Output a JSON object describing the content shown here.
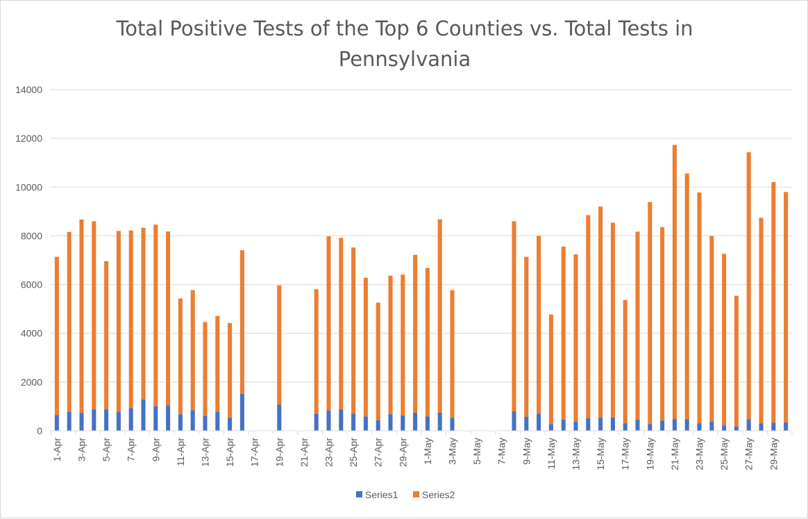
{
  "chart_data": {
    "type": "bar",
    "stacked": true,
    "title_lines": [
      "Total Positive Tests of the Top 6 Counties vs. Total Tests in",
      "Pennsylvania"
    ],
    "xlabel": "",
    "ylabel": "",
    "ylim": [
      0,
      14000
    ],
    "yticks": [
      0,
      2000,
      4000,
      6000,
      8000,
      10000,
      12000,
      14000
    ],
    "grid": true,
    "legend_position": "bottom",
    "categories": [
      "1-Apr",
      "2-Apr",
      "3-Apr",
      "4-Apr",
      "5-Apr",
      "6-Apr",
      "7-Apr",
      "8-Apr",
      "9-Apr",
      "10-Apr",
      "11-Apr",
      "12-Apr",
      "13-Apr",
      "14-Apr",
      "15-Apr",
      "16-Apr",
      "17-Apr",
      "18-Apr",
      "19-Apr",
      "20-Apr",
      "21-Apr",
      "22-Apr",
      "23-Apr",
      "24-Apr",
      "25-Apr",
      "26-Apr",
      "27-Apr",
      "28-Apr",
      "29-Apr",
      "30-Apr",
      "1-May",
      "2-May",
      "3-May",
      "4-May",
      "5-May",
      "6-May",
      "7-May",
      "8-May",
      "9-May",
      "10-May",
      "11-May",
      "12-May",
      "13-May",
      "14-May",
      "15-May",
      "16-May",
      "17-May",
      "18-May",
      "19-May",
      "20-May",
      "21-May",
      "22-May",
      "23-May",
      "24-May",
      "25-May",
      "26-May",
      "27-May",
      "28-May",
      "29-May",
      "30-May"
    ],
    "xtick_labels": [
      "1-Apr",
      "",
      "3-Apr",
      "",
      "5-Apr",
      "",
      "7-Apr",
      "",
      "9-Apr",
      "",
      "11-Apr",
      "",
      "13-Apr",
      "",
      "15-Apr",
      "",
      "17-Apr",
      "",
      "19-Apr",
      "",
      "21-Apr",
      "",
      "23-Apr",
      "",
      "25-Apr",
      "",
      "27-Apr",
      "",
      "29-Apr",
      "",
      "1-May",
      "",
      "3-May",
      "",
      "5-May",
      "",
      "7-May",
      "",
      "9-May",
      "",
      "11-May",
      "",
      "13-May",
      "",
      "15-May",
      "",
      "17-May",
      "",
      "19-May",
      "",
      "21-May",
      "",
      "23-May",
      "",
      "25-May",
      "",
      "27-May",
      "",
      "29-May",
      ""
    ],
    "series": [
      {
        "name": "Series1",
        "color": "#4472c4",
        "values": [
          650,
          770,
          730,
          870,
          880,
          790,
          930,
          1290,
          1010,
          1040,
          680,
          850,
          620,
          770,
          540,
          1520,
          null,
          null,
          1080,
          null,
          null,
          700,
          830,
          880,
          710,
          590,
          430,
          680,
          630,
          740,
          590,
          740,
          530,
          null,
          null,
          null,
          null,
          800,
          570,
          700,
          280,
          460,
          380,
          520,
          540,
          550,
          310,
          460,
          280,
          420,
          470,
          480,
          310,
          370,
          210,
          170,
          480,
          300,
          330,
          340
        ]
      },
      {
        "name": "Series2",
        "color": "#ed7d31",
        "values": [
          6490,
          7390,
          7940,
          7730,
          6080,
          7410,
          7290,
          7040,
          7450,
          7140,
          4750,
          4920,
          3840,
          3940,
          3880,
          5890,
          null,
          null,
          4890,
          null,
          null,
          5110,
          7150,
          7040,
          6810,
          5690,
          4830,
          5690,
          5780,
          6480,
          6090,
          7940,
          5240,
          null,
          null,
          null,
          null,
          7800,
          6570,
          7300,
          4490,
          7100,
          6860,
          8330,
          8660,
          7990,
          5060,
          7710,
          9110,
          7940,
          11260,
          10080,
          9470,
          7630,
          7050,
          5370,
          10950,
          8440,
          9880,
          9460
        ]
      }
    ]
  }
}
